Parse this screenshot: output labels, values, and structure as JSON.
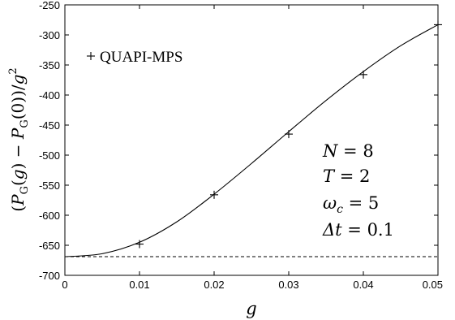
{
  "chart_data": {
    "type": "scatter",
    "title": "",
    "xlabel": "g",
    "ylabel": "(P_G(g) − P_G(0))/g^2",
    "xlim": [
      0,
      0.05
    ],
    "ylim": [
      -700,
      -250
    ],
    "x_ticks": [
      "0",
      "0.01",
      "0.02",
      "0.03",
      "0.04",
      "0.05"
    ],
    "y_ticks": [
      "-700",
      "-650",
      "-600",
      "-550",
      "-500",
      "-450",
      "-400",
      "-350",
      "-300",
      "-250"
    ],
    "grid": false,
    "legend": {
      "position": "top-left",
      "entries": [
        "QUAPI-MPS"
      ]
    },
    "series": [
      {
        "name": "QUAPI-MPS",
        "kind": "scatter",
        "marker": "+",
        "x": [
          0.01,
          0.02,
          0.03,
          0.04,
          0.05
        ],
        "y": [
          -648,
          -566,
          -465,
          -366,
          -283
        ]
      },
      {
        "kind": "line",
        "style": "solid",
        "x": [
          0,
          0.005,
          0.01,
          0.015,
          0.02,
          0.025,
          0.03,
          0.035,
          0.04,
          0.045,
          0.05
        ],
        "y": [
          -669,
          -664,
          -645,
          -611,
          -565,
          -514,
          -461,
          -409,
          -361,
          -318,
          -283
        ]
      },
      {
        "kind": "line",
        "style": "dashed",
        "x": [
          0,
          0.05
        ],
        "y": [
          -669,
          -669
        ]
      }
    ],
    "annotations": [
      {
        "lhs": "N",
        "rhs": "8"
      },
      {
        "lhs": "T",
        "rhs": "2"
      },
      {
        "lhs": "ω",
        "sub": "c",
        "rhs": "5"
      },
      {
        "lhs": "Δt",
        "rhs": "0.1"
      }
    ]
  }
}
